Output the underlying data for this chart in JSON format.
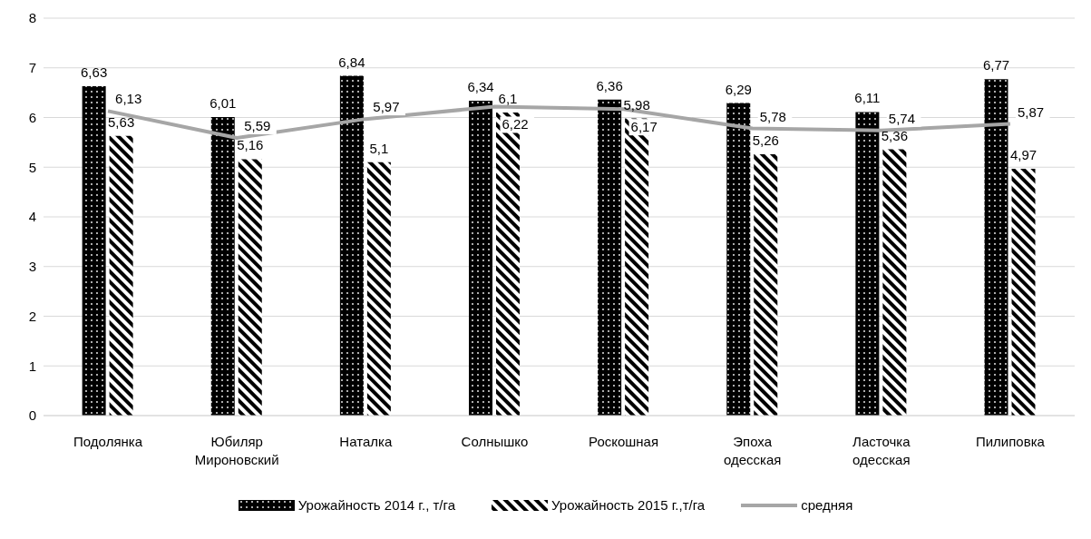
{
  "chart_data": {
    "type": "bar",
    "categories": [
      "Подолянка",
      "Юбиляр Мироновский",
      "Наталка",
      "Солнышко",
      "Роскошная",
      "Эпоха одесская",
      "Ласточка одесская",
      "Пилиповка"
    ],
    "series": [
      {
        "name": "Урожайность 2014 г., т/га",
        "type": "bar",
        "color": "#000000",
        "values": [
          6.63,
          6.01,
          6.84,
          6.34,
          6.36,
          6.29,
          6.11,
          6.77
        ],
        "value_labels": [
          "6,63",
          "6,01",
          "6,84",
          "6,34",
          "6,36",
          "6,29",
          "6,11",
          "6,77"
        ]
      },
      {
        "name": "Урожайность 2015 г.,т/га",
        "type": "bar",
        "color": "#000000",
        "values": [
          5.63,
          5.16,
          5.1,
          6.1,
          5.98,
          5.26,
          5.36,
          4.97
        ],
        "value_labels": [
          "5,63",
          "5,16",
          "5,1",
          "6,1",
          "5,98",
          "5,26",
          "5,36",
          "4,97"
        ]
      },
      {
        "name": "средняя",
        "type": "line",
        "color": "#a6a6a6",
        "values": [
          6.13,
          5.59,
          5.97,
          6.22,
          6.17,
          5.78,
          5.74,
          5.87
        ],
        "value_labels": [
          "6,13",
          "5,59",
          "5,97",
          "6,22",
          "6,17",
          "5,78",
          "5,74",
          "5,87"
        ]
      }
    ],
    "ylim": [
      0,
      8
    ],
    "yticks": [
      0,
      1,
      2,
      3,
      4,
      5,
      6,
      7,
      8
    ],
    "grid": "y",
    "legend": "bottom",
    "marker": "none"
  }
}
